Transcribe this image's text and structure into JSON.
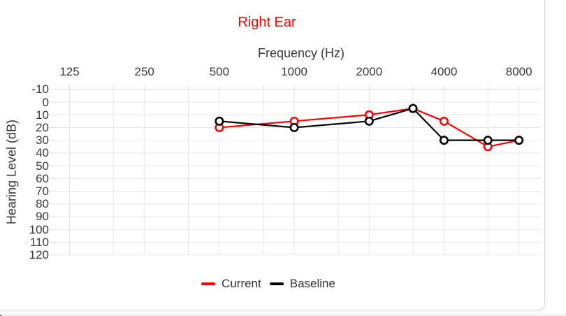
{
  "chart_data": {
    "type": "line",
    "title": "Right Ear",
    "title_color": "#ff0000",
    "xlabel": "Frequency (Hz)",
    "ylabel": "Hearing Level (dB)",
    "x_scale": "log2-octaves",
    "x_tick_freqs": [
      125,
      250,
      500,
      1000,
      2000,
      4000,
      8000
    ],
    "x_tick_labels": [
      "125",
      "250",
      "500",
      "1000",
      "2000",
      "4000",
      "8000"
    ],
    "x_minor_tick_freqs": [
      187.5,
      375,
      750,
      1500,
      3000,
      6000
    ],
    "y_ticks": [
      -10,
      0,
      10,
      20,
      30,
      40,
      50,
      60,
      70,
      80,
      90,
      100,
      110,
      120
    ],
    "ylim": [
      -10,
      120
    ],
    "y_axis_inverted": true,
    "grid": true,
    "x": [
      500,
      1000,
      2000,
      3000,
      4000,
      6000,
      8000
    ],
    "series": [
      {
        "name": "Current",
        "color": "#ff0000",
        "values": [
          20,
          15,
          10,
          5,
          15,
          35,
          30
        ]
      },
      {
        "name": "Baseline",
        "color": "#000000",
        "values": [
          15,
          20,
          15,
          5,
          30,
          30,
          30
        ]
      }
    ],
    "legend_position": "bottom",
    "grid_color": "#e7e7e7"
  }
}
